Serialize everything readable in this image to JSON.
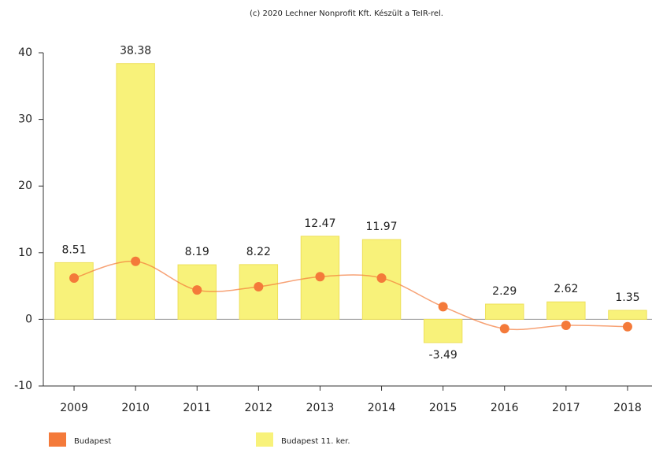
{
  "chart_data": {
    "type": "bar-line",
    "title": "(c) 2020 Lechner Nonprofit Kft. Készült a TeIR-rel.",
    "categories": [
      "2009",
      "2010",
      "2011",
      "2012",
      "2013",
      "2014",
      "2015",
      "2016",
      "2017",
      "2018"
    ],
    "series": [
      {
        "name": "Budapest",
        "type": "line",
        "color": "#f47a3a",
        "values": [
          6.2,
          8.7,
          4.4,
          4.9,
          6.4,
          6.2,
          1.9,
          -1.4,
          -0.9,
          -1.1
        ]
      },
      {
        "name": "Budapest 11. ker.",
        "type": "bar",
        "color": "#f8f27a",
        "values": [
          8.51,
          38.38,
          8.19,
          8.22,
          12.47,
          11.97,
          -3.49,
          2.29,
          2.62,
          1.35
        ]
      }
    ],
    "ylim": [
      -10,
      40
    ],
    "yticks": [
      -10,
      0,
      10,
      20,
      30,
      40
    ],
    "grid": false
  }
}
